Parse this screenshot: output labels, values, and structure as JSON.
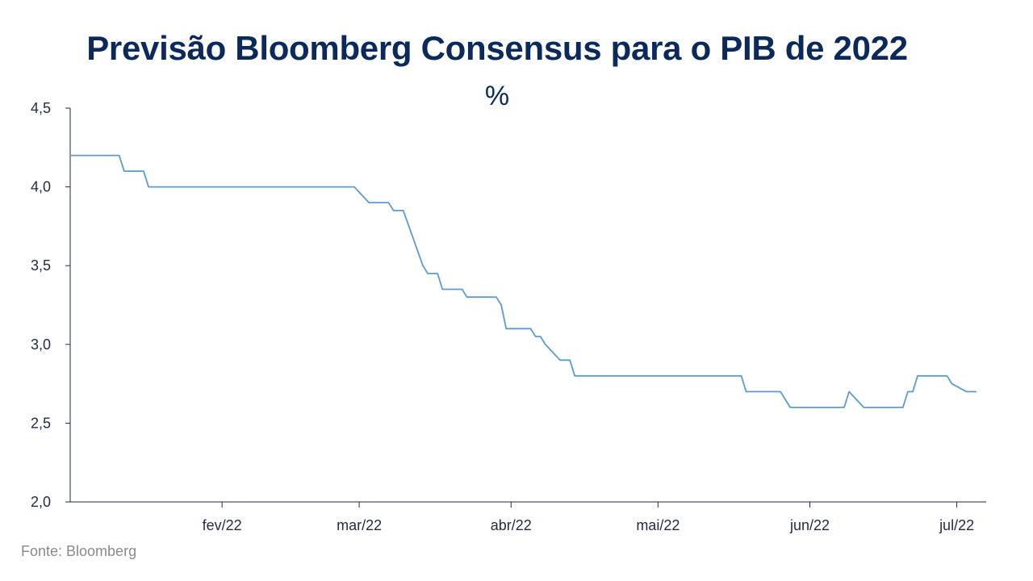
{
  "header": {
    "title": "Previsão Bloomberg Consensus para o PIB de 2022",
    "unit": "%"
  },
  "footer": {
    "source": "Fonte: Bloomberg"
  },
  "colors": {
    "line": "#5b9bd1",
    "axis": "#1f2a44",
    "title": "#0b2a5b"
  },
  "chart_data": {
    "type": "line",
    "title": "Previsão Bloomberg Consensus para o PIB de 2022",
    "xlabel": "",
    "ylabel": "%",
    "ylim": [
      2.0,
      4.5
    ],
    "yticks": [
      2.0,
      2.5,
      3.0,
      3.5,
      4.0,
      4.5
    ],
    "ytick_labels": [
      "2,0",
      "2,5",
      "3,0",
      "3,5",
      "4,0",
      "4,5"
    ],
    "xlim": [
      "2022-01-01",
      "2022-07-07"
    ],
    "xticks": [
      "2022-02-01",
      "2022-03-01",
      "2022-04-01",
      "2022-05-01",
      "2022-06-01",
      "2022-07-01"
    ],
    "xtick_labels": [
      "fev/22",
      "mar/22",
      "abr/22",
      "mai/22",
      "jun/22",
      "jul/22"
    ],
    "grid": false,
    "legend": "none",
    "series": [
      {
        "values": [
          [
            "2022-01-01",
            4.2
          ],
          [
            "2022-01-11",
            4.2
          ],
          [
            "2022-01-12",
            4.1
          ],
          [
            "2022-01-16",
            4.1
          ],
          [
            "2022-01-17",
            4.0
          ],
          [
            "2022-02-28",
            4.0
          ],
          [
            "2022-03-03",
            3.9
          ],
          [
            "2022-03-07",
            3.9
          ],
          [
            "2022-03-08",
            3.85
          ],
          [
            "2022-03-10",
            3.85
          ],
          [
            "2022-03-14",
            3.5
          ],
          [
            "2022-03-15",
            3.45
          ],
          [
            "2022-03-17",
            3.45
          ],
          [
            "2022-03-18",
            3.35
          ],
          [
            "2022-03-22",
            3.35
          ],
          [
            "2022-03-23",
            3.3
          ],
          [
            "2022-03-29",
            3.3
          ],
          [
            "2022-03-30",
            3.25
          ],
          [
            "2022-03-31",
            3.1
          ],
          [
            "2022-04-05",
            3.1
          ],
          [
            "2022-04-06",
            3.05
          ],
          [
            "2022-04-07",
            3.05
          ],
          [
            "2022-04-08",
            3.0
          ],
          [
            "2022-04-11",
            2.9
          ],
          [
            "2022-04-13",
            2.9
          ],
          [
            "2022-04-14",
            2.8
          ],
          [
            "2022-05-18",
            2.8
          ],
          [
            "2022-05-19",
            2.7
          ],
          [
            "2022-05-26",
            2.7
          ],
          [
            "2022-05-28",
            2.6
          ],
          [
            "2022-06-08",
            2.6
          ],
          [
            "2022-06-09",
            2.7
          ],
          [
            "2022-06-12",
            2.6
          ],
          [
            "2022-06-20",
            2.6
          ],
          [
            "2022-06-21",
            2.7
          ],
          [
            "2022-06-22",
            2.7
          ],
          [
            "2022-06-23",
            2.8
          ],
          [
            "2022-06-29",
            2.8
          ],
          [
            "2022-06-30",
            2.75
          ],
          [
            "2022-07-03",
            2.7
          ],
          [
            "2022-07-05",
            2.7
          ]
        ]
      }
    ]
  }
}
